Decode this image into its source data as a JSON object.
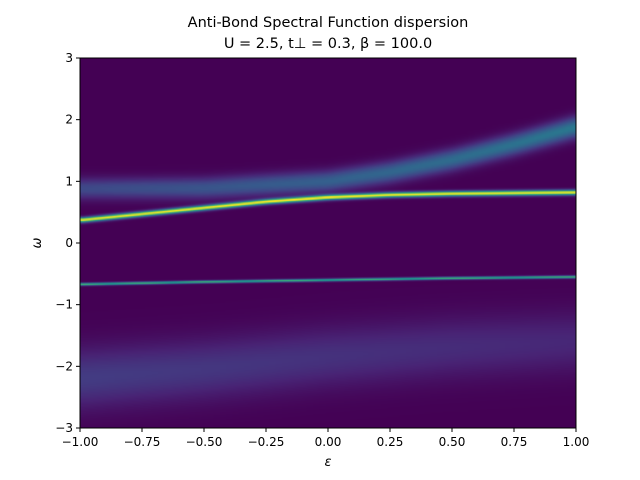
{
  "chart_data": {
    "type": "heatmap",
    "title": "Anti-Bond Spectral Function dispersion",
    "subtitle": "U = 2.5, t⊥ = 0.3, β = 100.0",
    "xlabel": "ε",
    "ylabel": "ω",
    "xlim": [
      -1.0,
      1.0
    ],
    "ylim": [
      -3,
      3
    ],
    "x_ticks": [
      "−1.00",
      "−0.75",
      "−0.50",
      "−0.25",
      "0.00",
      "0.25",
      "0.50",
      "0.75",
      "1.00"
    ],
    "y_ticks": [
      "−3",
      "−2",
      "−1",
      "0",
      "1",
      "2",
      "3"
    ],
    "colormap": "viridis",
    "grid": false,
    "features": [
      {
        "name": "upper quasiparticle band",
        "eps": [
          -1.0,
          -0.5,
          -0.25,
          0.0,
          0.25,
          0.5,
          1.0
        ],
        "omega": [
          0.37,
          0.57,
          0.67,
          0.74,
          0.78,
          0.8,
          0.82
        ],
        "width": 0.03,
        "intensity": 1.0
      },
      {
        "name": "lower quasiparticle band",
        "eps": [
          -1.0,
          -0.5,
          0.0,
          0.5,
          1.0
        ],
        "omega": [
          -0.67,
          -0.63,
          -0.6,
          -0.57,
          -0.55
        ],
        "width": 0.015,
        "intensity": 0.75
      },
      {
        "name": "upper incoherent branch",
        "eps": [
          -1.0,
          -0.5,
          0.0,
          0.25,
          0.5,
          0.75,
          1.0
        ],
        "omega": [
          0.88,
          0.89,
          1.0,
          1.15,
          1.35,
          1.6,
          1.88
        ],
        "width": 0.12,
        "intensity": 0.5
      },
      {
        "name": "lower incoherent band",
        "eps": [
          -1.0,
          -0.5,
          0.0,
          0.5,
          1.0
        ],
        "omega": [
          -2.2,
          -2.05,
          -1.85,
          -1.7,
          -1.6
        ],
        "width": 0.35,
        "intensity": 0.2
      }
    ]
  },
  "colors": {
    "background": "#440154",
    "axes_frame": "#000000"
  }
}
